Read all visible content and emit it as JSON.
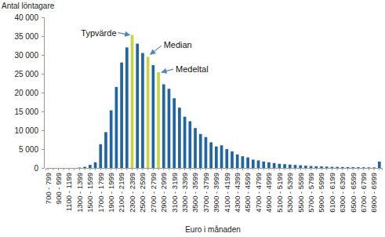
{
  "chart_data": {
    "type": "bar",
    "ylabel": "Antal löntagare",
    "xlabel": "Euro i månaden",
    "categories": [
      "700 - 799",
      null,
      "900 - 999",
      null,
      "1100 - 1199",
      null,
      "1300 - 1399",
      null,
      "1500 - 1599",
      null,
      "1700 - 1799",
      null,
      "1900 - 1999",
      null,
      "2100 - 2199",
      null,
      "2300 - 2399",
      null,
      "2500 - 2599",
      null,
      "2700 - 2799",
      null,
      "2900 - 2999",
      null,
      "3100 - 3199",
      null,
      "3300 - 3399",
      null,
      "3500 - 3599",
      null,
      "3700 - 3799",
      null,
      "3900 - 3999",
      null,
      "4100 - 4199",
      null,
      "4300 - 4399",
      null,
      "4500 - 4599",
      null,
      "4700 - 4799",
      null,
      "4900 - 4999",
      null,
      "5100 - 5199",
      null,
      "5300 - 5399",
      null,
      "5500 - 5599",
      null,
      "5700 - 5799",
      null,
      "5900 - 5999",
      null,
      "6100 - 6199",
      null,
      "6300 - 6399",
      null,
      "6500 - 6599",
      null,
      "6700 - 6799",
      null,
      "6900 - 6999",
      null
    ],
    "values": [
      0,
      0,
      0,
      0,
      0,
      0,
      100,
      300,
      800,
      1500,
      6300,
      9500,
      15300,
      21500,
      28000,
      32000,
      35300,
      33000,
      30500,
      29500,
      27300,
      25400,
      22200,
      21000,
      18500,
      16000,
      13600,
      12400,
      10600,
      9000,
      8200,
      6800,
      5700,
      6000,
      5000,
      4400,
      3600,
      3100,
      2800,
      2200,
      2000,
      1700,
      1500,
      1300,
      1100,
      1000,
      900,
      800,
      700,
      600,
      500,
      450,
      400,
      350,
      300,
      280,
      250,
      220,
      200,
      180,
      160,
      150,
      140,
      1700
    ],
    "colors": [
      "#1f64a3",
      "#1f64a3",
      "#1f64a3",
      "#1f64a3",
      "#1f64a3",
      "#1f64a3",
      "#1f64a3",
      "#1f64a3",
      "#1f64a3",
      "#1f64a3",
      "#1f64a3",
      "#1f64a3",
      "#1f64a3",
      "#1f64a3",
      "#1f64a3",
      "#1f64a3",
      "#c6d640",
      "#1f64a3",
      "#1f64a3",
      "#c6d640",
      "#1f64a3",
      "#c6d640",
      "#1f64a3",
      "#1f64a3",
      "#1f64a3",
      "#1f64a3",
      "#1f64a3",
      "#1f64a3",
      "#1f64a3",
      "#1f64a3",
      "#1f64a3",
      "#1f64a3",
      "#1f64a3",
      "#1f64a3",
      "#1f64a3",
      "#1f64a3",
      "#1f64a3",
      "#1f64a3",
      "#1f64a3",
      "#1f64a3",
      "#1f64a3",
      "#1f64a3",
      "#1f64a3",
      "#1f64a3",
      "#1f64a3",
      "#1f64a3",
      "#1f64a3",
      "#1f64a3",
      "#1f64a3",
      "#1f64a3",
      "#1f64a3",
      "#1f64a3",
      "#1f64a3",
      "#1f64a3",
      "#1f64a3",
      "#1f64a3",
      "#1f64a3",
      "#1f64a3",
      "#1f64a3",
      "#1f64a3",
      "#1f64a3",
      "#1f64a3",
      "#1f64a3",
      "#1f64a3"
    ],
    "ylim": [
      0,
      40000
    ],
    "yticks": [
      0,
      {
        "value": 5000,
        "label": "5 000"
      },
      {
        "value": 10000,
        "label": "10 000"
      },
      {
        "value": 15000,
        "label": "15 000"
      },
      {
        "value": 20000,
        "label": "20 000"
      },
      {
        "value": 25000,
        "label": "25 000"
      },
      {
        "value": 30000,
        "label": "30 000"
      },
      {
        "value": 35000,
        "label": "35 000"
      },
      {
        "value": 40000,
        "label": "40 000"
      }
    ],
    "grid": false,
    "annotations": [
      {
        "text": "Typvärde",
        "index": 16
      },
      {
        "text": "Median",
        "index": 19
      },
      {
        "text": "Medeltal",
        "index": 21
      }
    ]
  }
}
